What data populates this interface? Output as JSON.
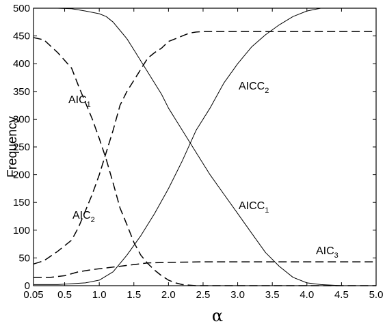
{
  "chart_data": {
    "type": "line",
    "xlabel": "α",
    "ylabel": "Frequency",
    "xlim": [
      0.05,
      5.0
    ],
    "ylim": [
      0,
      500
    ],
    "x_ticks": [
      0.05,
      0.5,
      1.0,
      1.5,
      2.0,
      2.5,
      3.0,
      3.5,
      4.0,
      4.5,
      5.0
    ],
    "x_tick_labels": [
      "0.05",
      "0.5",
      "1.0",
      "1.5",
      "2.0",
      "2.5",
      "3.0",
      "3.5",
      "4.0",
      "4.5",
      "5.0"
    ],
    "y_ticks": [
      0,
      50,
      100,
      150,
      200,
      250,
      300,
      350,
      400,
      450,
      500
    ],
    "y_tick_labels": [
      "0",
      "50",
      "100",
      "150",
      "200",
      "250",
      "300",
      "350",
      "400",
      "450",
      "500"
    ],
    "grid": false,
    "series": [
      {
        "name": "AIC1",
        "style": "dashed",
        "x": [
          0.05,
          0.2,
          0.4,
          0.6,
          0.7,
          0.8,
          0.9,
          1.0,
          1.1,
          1.2,
          1.3,
          1.4,
          1.5,
          1.6,
          1.7,
          1.8,
          1.9,
          2.0,
          2.1,
          2.2,
          2.3,
          2.4,
          2.5,
          3.0,
          4.0,
          5.0
        ],
        "y": [
          447,
          443,
          420,
          392,
          360,
          330,
          300,
          265,
          228,
          185,
          140,
          110,
          78,
          55,
          40,
          28,
          18,
          10,
          5,
          2,
          1,
          0,
          0,
          0,
          0,
          0
        ]
      },
      {
        "name": "AIC2",
        "style": "dashed",
        "x": [
          0.05,
          0.2,
          0.4,
          0.6,
          0.7,
          0.8,
          0.9,
          1.0,
          1.1,
          1.2,
          1.3,
          1.4,
          1.5,
          1.6,
          1.7,
          1.8,
          1.9,
          2.0,
          2.1,
          2.2,
          2.3,
          2.4,
          2.5,
          3.0,
          4.0,
          5.0
        ],
        "y": [
          39,
          45,
          62,
          82,
          105,
          135,
          165,
          200,
          240,
          280,
          325,
          350,
          370,
          390,
          410,
          420,
          428,
          440,
          445,
          450,
          455,
          457,
          458,
          458,
          458,
          458
        ]
      },
      {
        "name": "AIC3",
        "style": "dashed",
        "x": [
          0.05,
          0.3,
          0.5,
          0.7,
          0.9,
          1.1,
          1.3,
          1.5,
          1.7,
          2.0,
          2.5,
          3.0,
          4.0,
          5.0
        ],
        "y": [
          15,
          15,
          18,
          25,
          29,
          32,
          35,
          38,
          41,
          42,
          43,
          43,
          43,
          43
        ]
      },
      {
        "name": "AICC1",
        "style": "solid",
        "x": [
          0.05,
          0.2,
          0.4,
          0.6,
          0.8,
          1.0,
          1.1,
          1.2,
          1.3,
          1.4,
          1.5,
          1.6,
          1.7,
          1.8,
          1.9,
          2.0,
          2.2,
          2.4,
          2.6,
          2.8,
          3.0,
          3.2,
          3.4,
          3.6,
          3.8,
          4.0,
          4.2,
          4.5,
          5.0
        ],
        "y": [
          500,
          500,
          500,
          499,
          495,
          490,
          485,
          475,
          460,
          445,
          425,
          405,
          385,
          365,
          345,
          320,
          280,
          240,
          200,
          165,
          130,
          95,
          60,
          35,
          15,
          5,
          2,
          0,
          0
        ]
      },
      {
        "name": "AICC2",
        "style": "solid",
        "x": [
          0.05,
          0.4,
          0.8,
          1.0,
          1.2,
          1.4,
          1.6,
          1.8,
          2.0,
          2.2,
          2.4,
          2.6,
          2.8,
          3.0,
          3.2,
          3.4,
          3.6,
          3.8,
          4.0,
          4.2,
          4.5,
          5.0
        ],
        "y": [
          2,
          2,
          5,
          10,
          25,
          55,
          90,
          130,
          175,
          225,
          280,
          320,
          365,
          400,
          430,
          452,
          470,
          485,
          495,
          500,
          500,
          500
        ]
      }
    ],
    "annotations": [
      {
        "main": "AIC",
        "sub": "1",
        "target": "AIC1"
      },
      {
        "main": "AIC",
        "sub": "2",
        "target": "AIC2"
      },
      {
        "main": "AIC",
        "sub": "3",
        "target": "AIC3"
      },
      {
        "main": "AICC",
        "sub": "1",
        "target": "AICC1"
      },
      {
        "main": "AICC",
        "sub": "2",
        "target": "AICC2"
      }
    ]
  }
}
